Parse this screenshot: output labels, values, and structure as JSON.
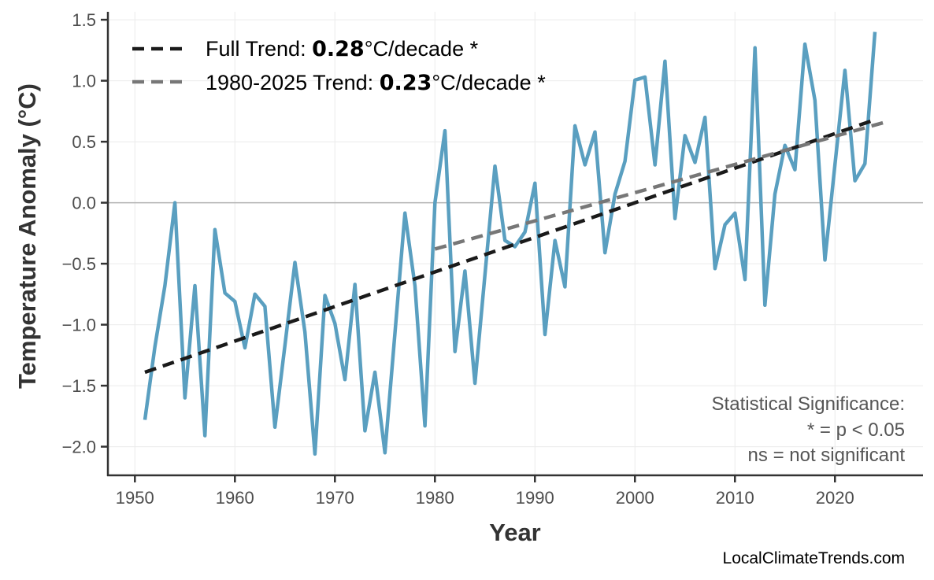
{
  "chart_data": {
    "type": "line",
    "title": "",
    "xlabel": "Year",
    "ylabel": "Temperature Anomaly (°C)",
    "xlim": [
      1947.3,
      2028.8
    ],
    "ylim": [
      -2.235,
      1.565
    ],
    "x_ticks": [
      "1950",
      "1960",
      "1970",
      "1980",
      "1990",
      "2000",
      "2010",
      "2020"
    ],
    "y_ticks": [
      "1.5",
      "1.0",
      "0.5",
      "0.0",
      "−0.5",
      "−1.0",
      "−1.5",
      "−2.0"
    ],
    "grid": true,
    "zero_line": true,
    "series_color": "#5a9fc0",
    "x": [
      1951,
      1952,
      1953,
      1954,
      1955,
      1956,
      1957,
      1958,
      1959,
      1960,
      1961,
      1962,
      1963,
      1964,
      1965,
      1966,
      1967,
      1968,
      1969,
      1970,
      1971,
      1972,
      1973,
      1974,
      1975,
      1976,
      1977,
      1978,
      1979,
      1980,
      1981,
      1982,
      1983,
      1984,
      1985,
      1986,
      1987,
      1988,
      1989,
      1990,
      1991,
      1992,
      1993,
      1994,
      1995,
      1996,
      1997,
      1998,
      1999,
      2000,
      2001,
      2002,
      2003,
      2004,
      2005,
      2006,
      2007,
      2008,
      2009,
      2010,
      2011,
      2012,
      2013,
      2014,
      2015,
      2016,
      2017,
      2018,
      2019,
      2020,
      2021,
      2022,
      2023,
      2024
    ],
    "y": [
      -1.78,
      -1.18,
      -0.68,
      0.0,
      -1.6,
      -0.68,
      -1.91,
      -0.22,
      -0.74,
      -0.81,
      -1.19,
      -0.75,
      -0.85,
      -1.84,
      -1.17,
      -0.49,
      -1.06,
      -2.06,
      -0.76,
      -0.99,
      -1.45,
      -0.67,
      -1.87,
      -1.39,
      -2.05,
      -1.07,
      -0.085,
      -0.68,
      -1.83,
      0.0,
      0.59,
      -1.22,
      -0.56,
      -1.48,
      -0.59,
      0.3,
      -0.31,
      -0.36,
      -0.24,
      0.16,
      -1.08,
      -0.31,
      -0.69,
      0.63,
      0.31,
      0.58,
      -0.41,
      0.07,
      0.34,
      1.005,
      1.03,
      0.31,
      1.16,
      -0.13,
      0.55,
      0.33,
      0.7,
      -0.54,
      -0.18,
      -0.085,
      -0.63,
      1.27,
      -0.84,
      0.07,
      0.47,
      0.27,
      1.3,
      0.84,
      -0.47,
      0.31,
      1.085,
      0.18,
      0.32,
      1.4
    ],
    "trends": [
      {
        "name": "Full Trend",
        "x": [
          1951,
          2024
        ],
        "y": [
          -1.39,
          0.68
        ],
        "color": "#1a1a1a",
        "value": "0.28",
        "unit": "°C/decade",
        "significance": "*"
      },
      {
        "name": "1980-2025 Trend",
        "x": [
          1980,
          2025
        ],
        "y": [
          -0.38,
          0.66
        ],
        "color": "#777777",
        "value": "0.23",
        "unit": "°C/decade",
        "significance": "*"
      }
    ],
    "legend_position": "top-left",
    "annotation": [
      "Statistical Significance:",
      "* = p < 0.05",
      "ns = not significant"
    ],
    "credit": "LocalClimateTrends.com"
  }
}
